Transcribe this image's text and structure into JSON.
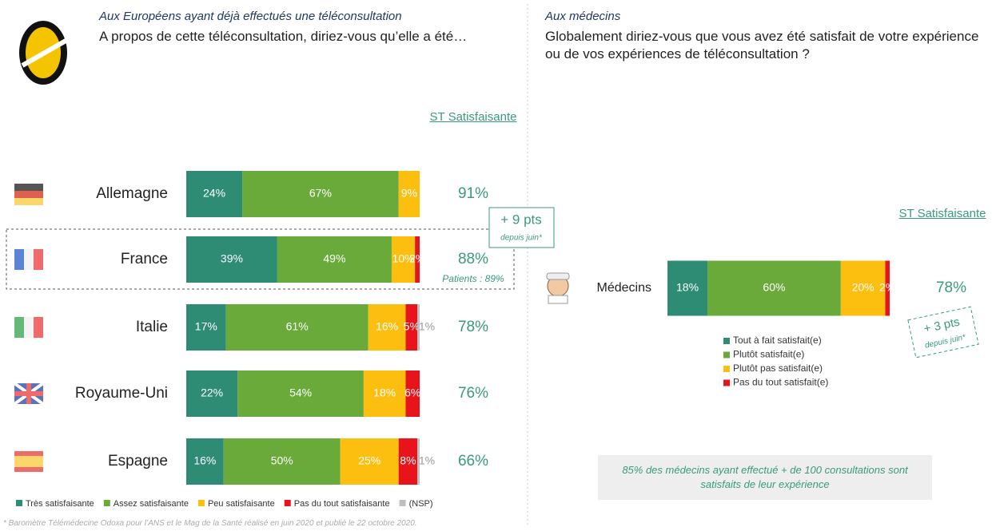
{
  "chart_data": [
    {
      "type": "bar",
      "orientation": "horizontal",
      "stacked": true,
      "subtitle": "Aux Européens ayant déjà effectués une téléconsultation",
      "title": "A propos de cette téléconsultation, diriez-vous qu’elle a été…",
      "categories": [
        "Allemagne",
        "France",
        "Italie",
        "Royaume-Uni",
        "Espagne"
      ],
      "xlim": [
        0,
        100
      ],
      "series": [
        {
          "name": "Très satisfaisante",
          "color": "#2e8b74",
          "values": [
            24,
            39,
            17,
            22,
            16
          ],
          "value_labels": [
            "24%",
            "39%",
            "17%",
            "22%",
            "16%"
          ]
        },
        {
          "name": "Assez satisfaisante",
          "color": "#6aaa3a",
          "values": [
            67,
            49,
            61,
            54,
            50
          ],
          "value_labels": [
            "67%",
            "49%",
            "61%",
            "54%",
            "50%"
          ]
        },
        {
          "name": "Peu satisfaisante",
          "color": "#fcbf0f",
          "values": [
            9,
            10,
            16,
            18,
            25
          ],
          "value_labels": [
            "9%",
            "10%",
            "16%",
            "18%",
            "25%"
          ]
        },
        {
          "name": "Pas du tout satisfaisante",
          "color": "#e8131b",
          "values": [
            null,
            2,
            5,
            6,
            8
          ],
          "value_labels": [
            null,
            "2%",
            "5%",
            "6%",
            "8%"
          ]
        },
        {
          "name": "(NSP)",
          "color": "#bfbfbf",
          "values": [
            null,
            null,
            1,
            null,
            1
          ],
          "value_labels": [
            null,
            null,
            "1%",
            null,
            "1%"
          ]
        }
      ],
      "st_label": "ST Satisfaisante",
      "st_values": [
        91,
        88,
        78,
        76,
        66
      ],
      "st_value_labels": [
        "91%",
        "88%",
        "78%",
        "76%",
        "66%"
      ],
      "annotations": [
        "+ 9 pts",
        "depuis juin*",
        "Patients : 89%"
      ],
      "legend": "bottom",
      "footnote": "* Baromètre Télémédecine Odoxa pour l’ANS et le Mag de la Santé réalisé en juin 2020 et publié le 22 octobre 2020."
    },
    {
      "type": "bar",
      "orientation": "horizontal",
      "stacked": true,
      "subtitle": "Aux médecins",
      "title": "Globalement diriez-vous que vous avez été satisfait de votre expérience ou de vos expériences de téléconsultation ?",
      "categories": [
        "Médecins"
      ],
      "xlim": [
        0,
        100
      ],
      "series": [
        {
          "name": "Tout à fait satisfait(e)",
          "color": "#2e8b74",
          "values": [
            18
          ],
          "value_labels": [
            "18%"
          ]
        },
        {
          "name": "Plutôt satisfait(e)",
          "color": "#6aaa3a",
          "values": [
            60
          ],
          "value_labels": [
            "60%"
          ]
        },
        {
          "name": "Plutôt pas satisfait(e)",
          "color": "#fcbf0f",
          "values": [
            20
          ],
          "value_labels": [
            "20%"
          ]
        },
        {
          "name": "Pas du tout satisfait(e)",
          "color": "#e8131b",
          "values": [
            2
          ],
          "value_labels": [
            "2%"
          ]
        }
      ],
      "st_label": "ST Satisfaisante",
      "st_values": [
        78
      ],
      "st_value_labels": [
        "78%"
      ],
      "annotations": [
        "+ 3 pts",
        "depuis juin*"
      ],
      "legend": "below",
      "note": "85% des médecins ayant effectué + de 100 consultations sont satisfaits de leur expérience"
    }
  ]
}
